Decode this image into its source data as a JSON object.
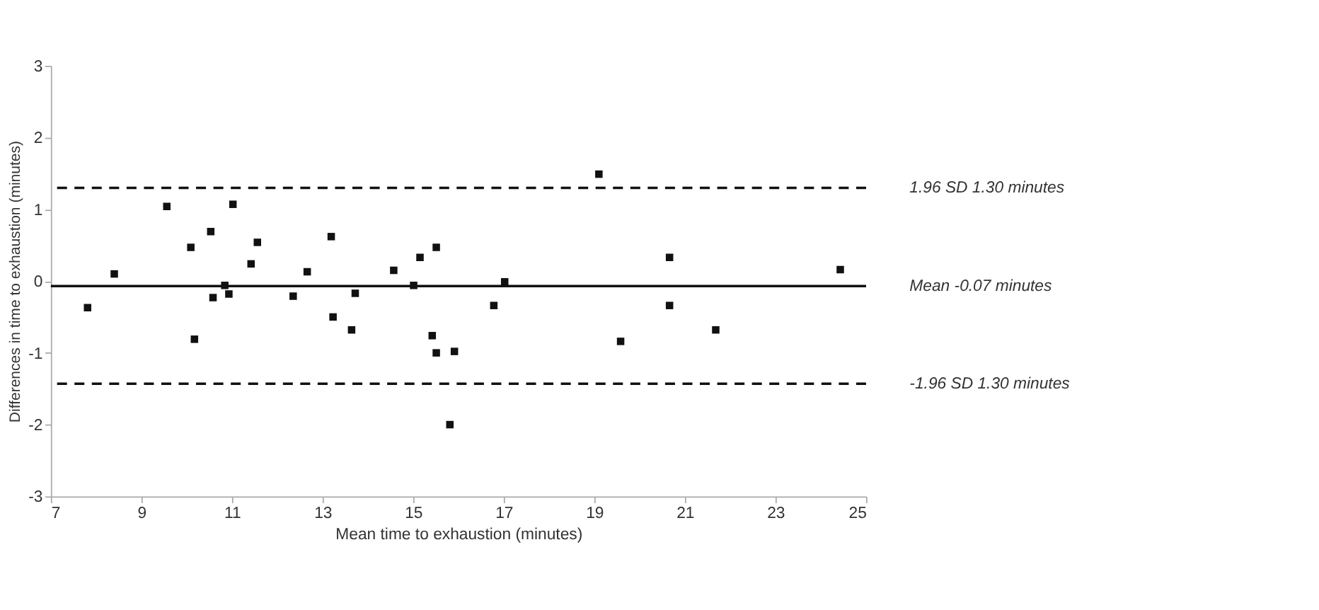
{
  "chart_data": {
    "type": "scatter",
    "xlabel": "Mean time to exhaustion (minutes)",
    "ylabel": "Differences in time to exhaustion (minutes)",
    "xlim": [
      7,
      25
    ],
    "xticks": [
      7,
      9,
      11,
      13,
      15,
      17,
      19,
      21,
      23,
      25
    ],
    "ylim": [
      -3,
      3
    ],
    "yticks": [
      -3,
      -2,
      -1,
      0,
      1,
      2,
      3
    ],
    "grid": false,
    "marker": "square",
    "series": [
      {
        "color": "#111111",
        "x": [
          7.81,
          8.4,
          9.56,
          10.09,
          10.17,
          10.53,
          10.58,
          10.84,
          10.93,
          11.02,
          11.42,
          11.56,
          12.35,
          12.66,
          13.19,
          13.23,
          13.64,
          13.72,
          14.57,
          15.01,
          15.15,
          15.42,
          15.51,
          15.51,
          15.81,
          15.91,
          16.78,
          17.02,
          19.1,
          19.58,
          20.66,
          20.66,
          21.68,
          24.43
        ],
        "values": [
          -0.37,
          0.1,
          1.04,
          0.47,
          -0.81,
          0.69,
          -0.23,
          -0.06,
          -0.18,
          1.07,
          0.24,
          0.54,
          -0.21,
          0.13,
          0.62,
          -0.5,
          -0.68,
          -0.17,
          0.15,
          -0.06,
          0.33,
          -0.76,
          0.47,
          -1.0,
          -2.0,
          -0.98,
          -0.34,
          -0.01,
          1.49,
          -0.84,
          0.33,
          -0.34,
          -0.68,
          0.16
        ]
      }
    ],
    "ref_lines": [
      {
        "axis": "y",
        "value": 1.3,
        "label": "1.96 SD 1.30 minutes",
        "line_style": "dashed",
        "color": "#111111"
      },
      {
        "axis": "y",
        "value": -0.07,
        "label": "Mean -0.07 minutes",
        "line_style": "solid",
        "color": "#111111"
      },
      {
        "axis": "y",
        "value": -1.43,
        "label": "-1.96 SD 1.30 minutes",
        "line_style": "dashed",
        "color": "#111111"
      }
    ]
  }
}
